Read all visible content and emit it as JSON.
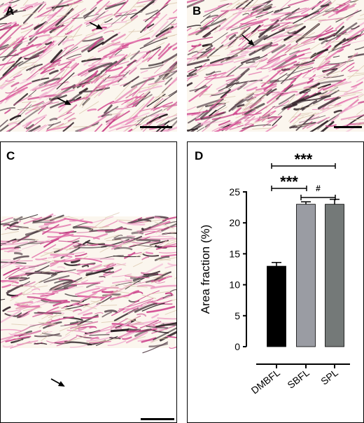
{
  "figure": {
    "panels": [
      {
        "letter": "A",
        "kind": "micrograph"
      },
      {
        "letter": "B",
        "kind": "micrograph"
      },
      {
        "letter": "C",
        "kind": "micrograph"
      },
      {
        "letter": "D",
        "kind": "chart"
      }
    ]
  },
  "colors": {
    "stain_pink": "#d9559a",
    "stain_dark": "#3a2a30",
    "background": "#fbf6ee"
  },
  "chart_data": {
    "type": "bar",
    "categories": [
      "DMBFL",
      "SBFL",
      "SPL"
    ],
    "values": [
      13,
      23,
      23
    ],
    "errors": [
      0.6,
      0.4,
      0.8
    ],
    "bar_colors": [
      "#000000",
      "#9a9ca3",
      "#747978"
    ],
    "ylabel": "Area fraction (%)",
    "ylim": [
      0,
      25
    ],
    "yticks": [
      0,
      5,
      10,
      15,
      20,
      25
    ],
    "grid": false,
    "significance": [
      {
        "from": 0,
        "to": 2,
        "label": "***"
      },
      {
        "from": 0,
        "to": 1,
        "label": "***"
      },
      {
        "from": 1,
        "to": 2,
        "label": "#"
      }
    ]
  }
}
